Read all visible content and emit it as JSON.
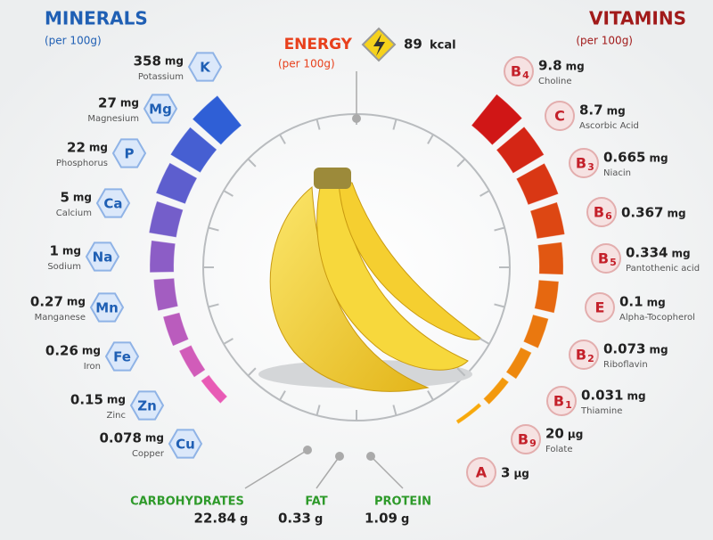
{
  "minerals": {
    "title": "MINERALS",
    "subtitle": "(per 100g)",
    "items": [
      {
        "amount": "358",
        "unit": "mg",
        "name": "Potassium",
        "symbol": "K"
      },
      {
        "amount": "27",
        "unit": "mg",
        "name": "Magnesium",
        "symbol": "Mg"
      },
      {
        "amount": "22",
        "unit": "mg",
        "name": "Phosphorus",
        "symbol": "P"
      },
      {
        "amount": "5",
        "unit": "mg",
        "name": "Calcium",
        "symbol": "Ca"
      },
      {
        "amount": "1",
        "unit": "mg",
        "name": "Sodium",
        "symbol": "Na"
      },
      {
        "amount": "0.27",
        "unit": "mg",
        "name": "Manganese",
        "symbol": "Mn"
      },
      {
        "amount": "0.26",
        "unit": "mg",
        "name": "Iron",
        "symbol": "Fe"
      },
      {
        "amount": "0.15",
        "unit": "mg",
        "name": "Zinc",
        "symbol": "Zn"
      },
      {
        "amount": "0.078",
        "unit": "mg",
        "name": "Copper",
        "symbol": "Cu"
      }
    ]
  },
  "vitamins": {
    "title": "VITAMINS",
    "subtitle": "(per 100g)",
    "items": [
      {
        "amount": "9.8",
        "unit": "mg",
        "name": "Choline",
        "symbol": "B",
        "sub": "4"
      },
      {
        "amount": "8.7",
        "unit": "mg",
        "name": "Ascorbic Acid",
        "symbol": "C"
      },
      {
        "amount": "0.665",
        "unit": "mg",
        "name": "Niacin",
        "symbol": "B",
        "sub": "3"
      },
      {
        "amount": "0.367",
        "unit": "mg",
        "symbol": "B",
        "sub": "6"
      },
      {
        "amount": "0.334",
        "unit": "mg",
        "name": "Pantothenic acid",
        "symbol": "B",
        "sub": "5"
      },
      {
        "amount": "0.1",
        "unit": "mg",
        "name": "Alpha-Tocopherol",
        "symbol": "E"
      },
      {
        "amount": "0.073",
        "unit": "mg",
        "name": "Riboflavin",
        "symbol": "B",
        "sub": "2"
      },
      {
        "amount": "0.031",
        "unit": "mg",
        "name": "Thiamine",
        "symbol": "B",
        "sub": "1"
      },
      {
        "amount": "20",
        "unit": "µg",
        "name": "Folate",
        "symbol": "B",
        "sub": "9"
      },
      {
        "amount": "3",
        "unit": "µg",
        "symbol": "A"
      }
    ]
  },
  "energy": {
    "title": "ENERGY",
    "subtitle": "(per 100g)",
    "amount": "89",
    "unit": "kcal"
  },
  "macros": [
    {
      "name": "CARBOHYDRATES",
      "amount": "22.84",
      "unit": "g"
    },
    {
      "name": "FAT",
      "amount": "0.33",
      "unit": "g"
    },
    {
      "name": "PROTEIN",
      "amount": "1.09",
      "unit": "g"
    }
  ]
}
